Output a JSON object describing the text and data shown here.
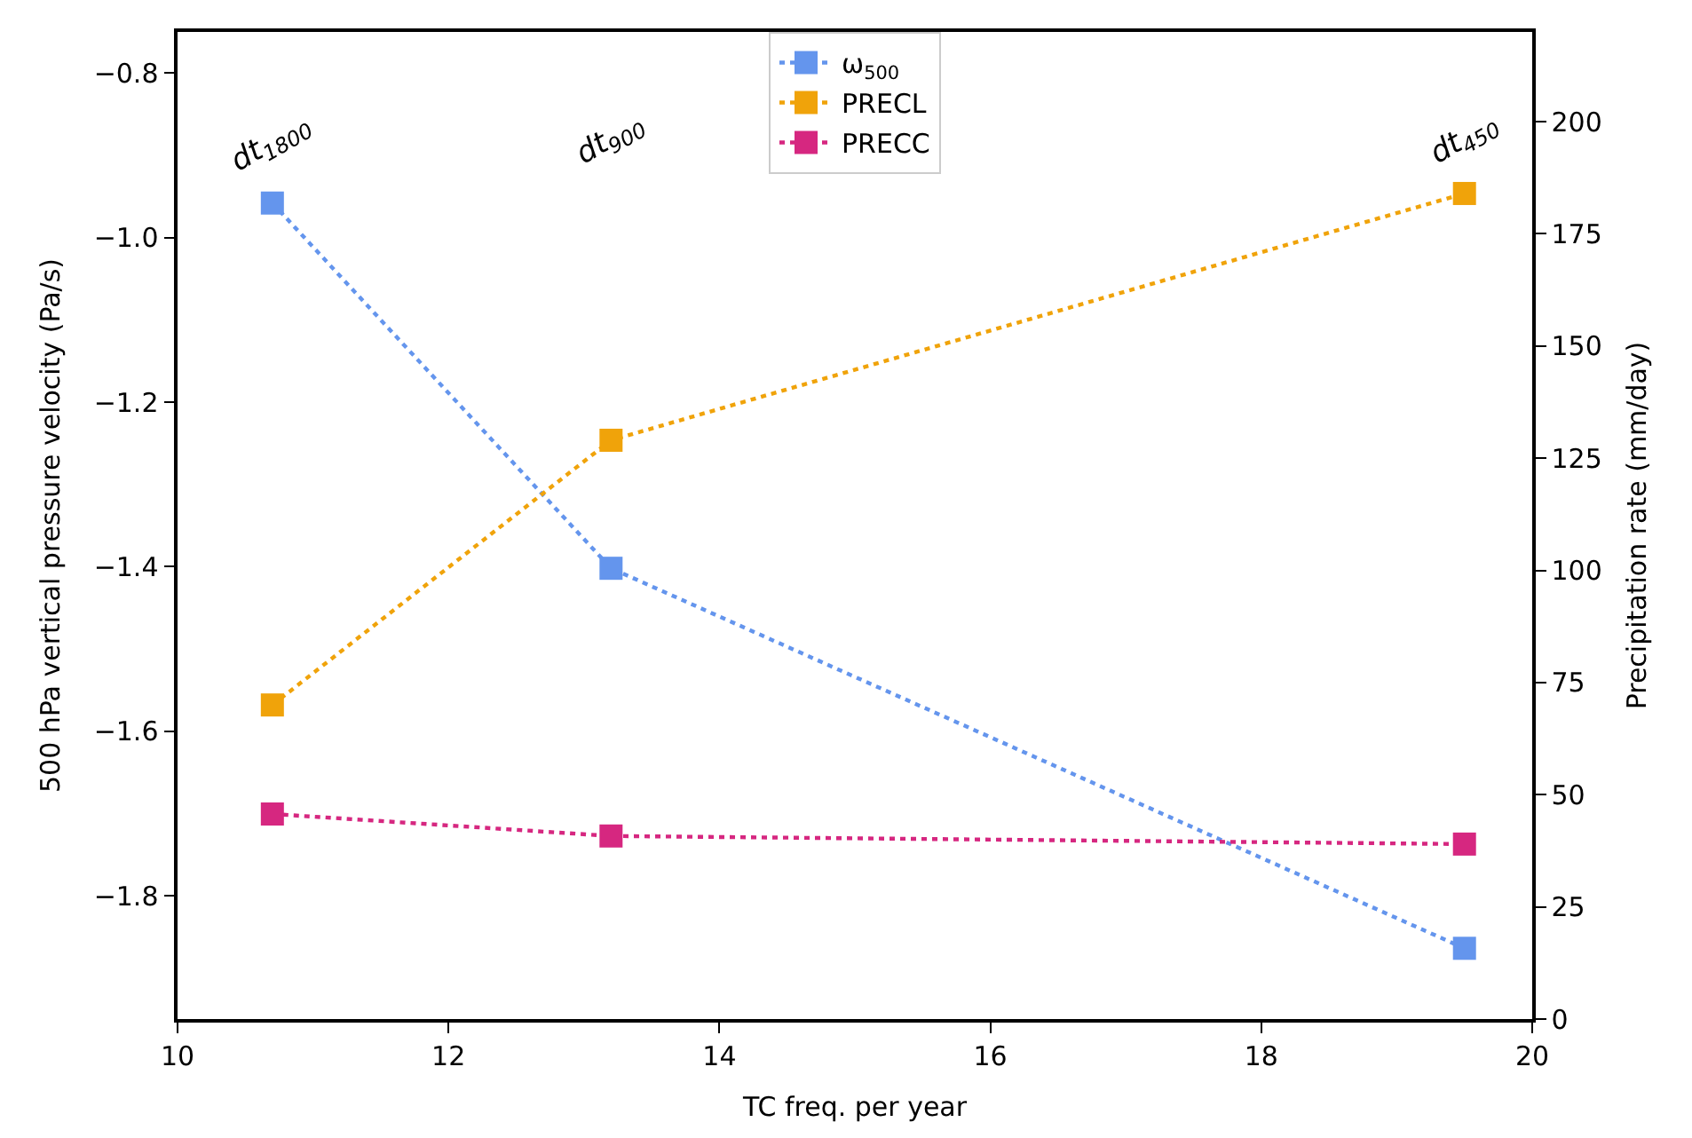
{
  "chart_data": {
    "type": "line",
    "xlabel": "TC freq. per year",
    "ylabel": "500 hPa vertical pressure velocity (Pa/s)",
    "y2label": "Precipitation rate (mm/day)",
    "x": [
      10.7,
      13.2,
      19.5
    ],
    "series": [
      {
        "name": "ω$_{500}$",
        "color": "#6495ed",
        "values": [
          -0.958,
          -1.402,
          -1.864
        ]
      },
      {
        "name": "PRECL",
        "color": "#f0a30a",
        "values": [
          70,
          129,
          184
        ],
        "axis": "y2"
      },
      {
        "name": "PRECC",
        "color": "#d62780",
        "values": [
          45.7,
          40.8,
          39
        ],
        "axis": "y2"
      }
    ],
    "xlim": [
      10,
      20
    ],
    "xticks": [
      10,
      12,
      14,
      16,
      18,
      20
    ],
    "ylim": [
      -1.95,
      -0.75
    ],
    "yticks": [
      {
        "value": -1.8,
        "label": "−1.8"
      },
      {
        "value": -1.6,
        "label": "−1.6"
      },
      {
        "value": -1.4,
        "label": "−1.4"
      },
      {
        "value": -1.2,
        "label": "−1.2"
      },
      {
        "value": -1.0,
        "label": "−1.0"
      },
      {
        "value": -0.8,
        "label": "−0.8"
      }
    ],
    "y2lim": [
      0,
      220
    ],
    "y2ticks": [
      0,
      25,
      50,
      75,
      100,
      125,
      150,
      175,
      200
    ],
    "annotations": [
      "dt$_{1800}$",
      "dt$_{900}$",
      "dt$_{450}$"
    ],
    "marker": "square",
    "line_style": "dotted",
    "legend": "top"
  }
}
